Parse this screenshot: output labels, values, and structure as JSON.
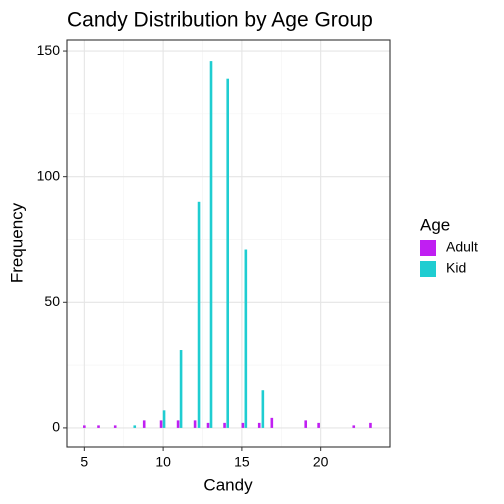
{
  "chart_data": {
    "type": "bar",
    "title": "Candy Distribution by Age Group",
    "x_label": "Candy",
    "y_label": "Frequency",
    "legend_title": "Age",
    "series": [
      {
        "name": "Adult",
        "color": "#c01ff2",
        "x": [
          5.0,
          5.9,
          6.96,
          8.8,
          9.87,
          10.95,
          12.03,
          12.85,
          13.9,
          15.06,
          16.1,
          16.9,
          19.05,
          19.87,
          22.1,
          23.16
        ],
        "values": [
          1,
          1,
          1,
          3,
          3,
          3,
          3,
          2,
          2,
          2,
          2,
          4,
          3,
          2,
          1,
          2
        ]
      },
      {
        "name": "Kid",
        "color": "#1fcdd1",
        "x": [
          8.2,
          10.06,
          11.14,
          12.28,
          13.04,
          14.1,
          15.25,
          16.33
        ],
        "values": [
          1,
          7,
          31,
          90,
          146,
          139,
          71,
          15
        ]
      }
    ],
    "xlim": [
      3.9,
      24.4
    ],
    "xticks": [
      5,
      10,
      15,
      20
    ],
    "ylim": [
      -7.6,
      154.4
    ],
    "yticks": [
      0,
      50,
      100,
      150
    ],
    "grid": true,
    "legend": "right"
  }
}
